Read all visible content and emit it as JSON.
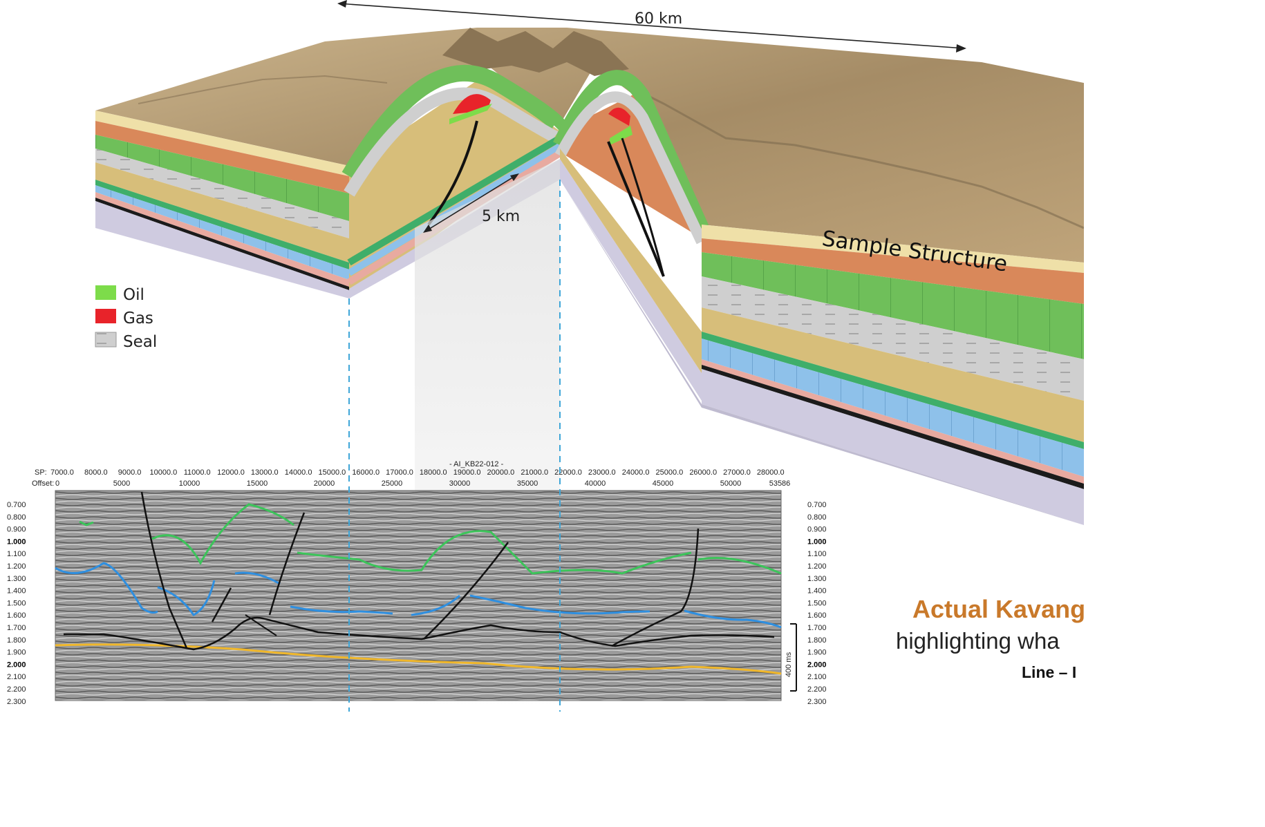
{
  "block_diagram": {
    "width_label": "60 km",
    "fault_spacing_label": "5 km",
    "structure_label": "Sample Structure"
  },
  "legend": [
    {
      "label": "Oil",
      "color": "#7ddc4a"
    },
    {
      "label": "Gas",
      "color": "#e8232a"
    },
    {
      "label": "Seal",
      "color": "#c9c9c9"
    }
  ],
  "seismic": {
    "line_name": "- AI_KB22-012 -",
    "sp_prefix": "SP:",
    "offset_prefix": "Offset:",
    "sp_ticks": [
      "7000.0",
      "8000.0",
      "9000.0",
      "10000.0",
      "11000.0",
      "12000.0",
      "13000.0",
      "14000.0",
      "15000.0",
      "16000.0",
      "17000.0",
      "18000.0",
      "19000.0",
      "20000.0",
      "21000.0",
      "22000.0",
      "23000.0",
      "24000.0",
      "25000.0",
      "26000.0",
      "27000.0",
      "28000.0"
    ],
    "offset_ticks": [
      "0",
      "5000",
      "10000",
      "15000",
      "20000",
      "25000",
      "30000",
      "35000",
      "40000",
      "45000",
      "50000",
      "53586"
    ],
    "time_ticks": [
      "0.700",
      "0.800",
      "0.900",
      "1.000",
      "1.100",
      "1.200",
      "1.300",
      "1.400",
      "1.500",
      "1.600",
      "1.700",
      "1.800",
      "1.900",
      "2.000",
      "2.100",
      "2.200",
      "2.300"
    ],
    "scale_bar_label": "400 ms",
    "horizon_colors": {
      "green": "#3cc45a",
      "blue": "#2e8fe0",
      "yellow": "#f0b72a",
      "fault": "#111111"
    }
  },
  "caption": {
    "line1": "Actual Kavango",
    "line2": "highlighting wha",
    "line3": "Line – I"
  },
  "layer_colors": {
    "sand_top": "#efe0a8",
    "carbonate": "#d9885a",
    "oil_zone": "#6fbf5a",
    "seal": "#cfcfcf",
    "sandstone": "#d7be7a",
    "green_marker": "#3fae6a",
    "blue_lime": "#8ec1ea",
    "pink_shale": "#e8aaa0",
    "basement": "#cfcbe0"
  }
}
